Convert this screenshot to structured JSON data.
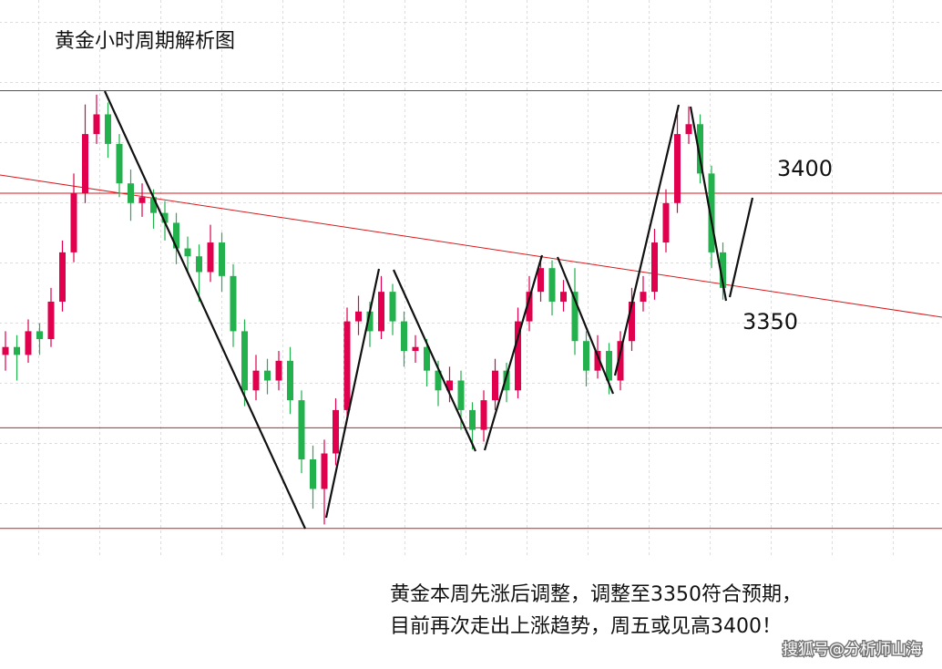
{
  "chart_data": {
    "type": "candlestick",
    "title": "黄金小时周期解析图",
    "price_labels": [
      "3400",
      "3350"
    ],
    "annotation": [
      "黄金本周先涨后调整，调整至3350符合预期，",
      "目前再次走出上涨趋势，周五或见高3400！"
    ],
    "watermark": "搜狐号@分析师山海",
    "ylim": [
      3216,
      3498
    ],
    "levels": [
      3452,
      3400,
      3281,
      3230
    ],
    "level_color": "#d9191c",
    "up_color": "#e0004d",
    "down_color": "#22b14c",
    "open": [
      3318,
      3322,
      3318,
      3330,
      3326,
      3345,
      3370,
      3400,
      3430,
      3440,
      3425,
      3405,
      3395,
      3398,
      3390,
      3385,
      3372,
      3368,
      3360,
      3375,
      3358,
      3330,
      3300,
      3310,
      3305,
      3315,
      3295,
      3265,
      3250,
      3268,
      3290,
      3335,
      3340,
      3330,
      3350,
      3335,
      3320,
      3322,
      3310,
      3300,
      3305,
      3290,
      3280,
      3295,
      3310,
      3300,
      3335,
      3350,
      3362,
      3345,
      3350,
      3325,
      3310,
      3320,
      3305,
      3325,
      3345,
      3350,
      3375,
      3395,
      3430,
      3435,
      3410,
      3370
    ],
    "high": [
      3330,
      3328,
      3336,
      3334,
      3352,
      3376,
      3410,
      3445,
      3450,
      3446,
      3430,
      3412,
      3405,
      3402,
      3396,
      3390,
      3378,
      3374,
      3384,
      3380,
      3364,
      3336,
      3318,
      3316,
      3320,
      3322,
      3300,
      3272,
      3275,
      3296,
      3342,
      3348,
      3345,
      3358,
      3354,
      3340,
      3328,
      3326,
      3315,
      3312,
      3310,
      3294,
      3300,
      3316,
      3314,
      3342,
      3358,
      3368,
      3366,
      3356,
      3362,
      3330,
      3328,
      3324,
      3330,
      3352,
      3358,
      3382,
      3402,
      3440,
      3444,
      3440,
      3414,
      3375
    ],
    "low": [
      3310,
      3305,
      3314,
      3318,
      3322,
      3340,
      3365,
      3395,
      3425,
      3418,
      3398,
      3386,
      3388,
      3382,
      3376,
      3364,
      3360,
      3345,
      3355,
      3350,
      3322,
      3292,
      3295,
      3298,
      3300,
      3288,
      3258,
      3240,
      3232,
      3262,
      3285,
      3328,
      3322,
      3326,
      3328,
      3312,
      3314,
      3302,
      3292,
      3294,
      3280,
      3270,
      3274,
      3290,
      3294,
      3296,
      3330,
      3345,
      3338,
      3340,
      3318,
      3302,
      3306,
      3298,
      3300,
      3320,
      3340,
      3346,
      3370,
      3390,
      3425,
      3405,
      3362,
      3346
    ],
    "close": [
      3322,
      3318,
      3330,
      3326,
      3345,
      3370,
      3400,
      3430,
      3440,
      3425,
      3405,
      3395,
      3398,
      3390,
      3385,
      3372,
      3368,
      3360,
      3375,
      3358,
      3330,
      3300,
      3310,
      3305,
      3315,
      3295,
      3265,
      3250,
      3268,
      3290,
      3335,
      3340,
      3330,
      3350,
      3335,
      3320,
      3322,
      3310,
      3300,
      3305,
      3290,
      3280,
      3295,
      3310,
      3300,
      3335,
      3350,
      3362,
      3345,
      3350,
      3325,
      3310,
      3320,
      3305,
      3325,
      3345,
      3350,
      3375,
      3395,
      3430,
      3435,
      3410,
      3370,
      3352
    ]
  }
}
